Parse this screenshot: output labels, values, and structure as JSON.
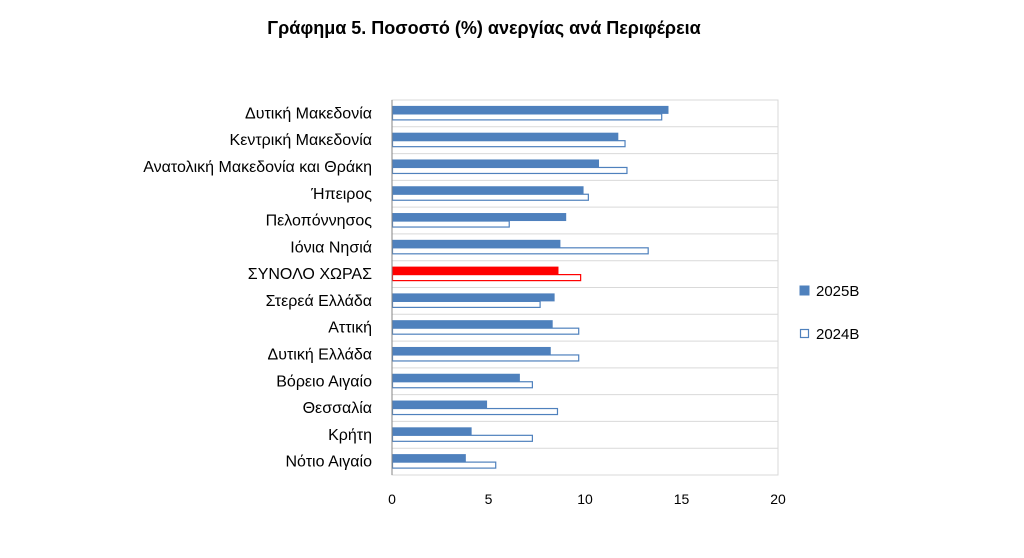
{
  "chart_data": {
    "type": "bar",
    "orientation": "horizontal",
    "title": "Γράφημα 5. Ποσοστό (%) ανεργίας ανά Περιφέρεια",
    "categories": [
      "Δυτική Μακεδονία",
      "Κεντρική Μακεδονία",
      "Ανατολική Μακεδονία και Θράκη",
      "Ήπειρος",
      "Πελοπόννησος",
      "Ιόνια Νησιά",
      "ΣΥΝΟΛΟ ΧΩΡΑΣ",
      "Στερεά Ελλάδα",
      "Αττική",
      "Δυτική Ελλάδα",
      "Βόρειο Αιγαίο",
      "Θεσσαλία",
      "Κρήτη",
      "Νότιο Αιγαίο"
    ],
    "series": [
      {
        "name": "2025Β",
        "values": [
          14.3,
          11.7,
          10.7,
          9.9,
          9.0,
          8.7,
          8.6,
          8.4,
          8.3,
          8.2,
          6.6,
          4.9,
          4.1,
          3.8
        ]
      },
      {
        "name": "2024Β",
        "values": [
          14.0,
          12.1,
          12.2,
          10.2,
          6.1,
          13.3,
          9.8,
          7.7,
          9.7,
          9.7,
          7.3,
          8.6,
          7.3,
          5.4
        ]
      }
    ],
    "highlight_category": "ΣΥΝΟΛΟ ΧΩΡΑΣ",
    "xlim": [
      0,
      20
    ],
    "xticks": [
      0,
      5,
      10,
      15,
      20
    ],
    "grid": true,
    "legend_position": "right",
    "colors": {
      "series_fill": "#4f81bd",
      "series_outline": "#4f81bd",
      "highlight": "#ff0000",
      "grid": "#d9d9d9",
      "axis": "#868686"
    }
  }
}
